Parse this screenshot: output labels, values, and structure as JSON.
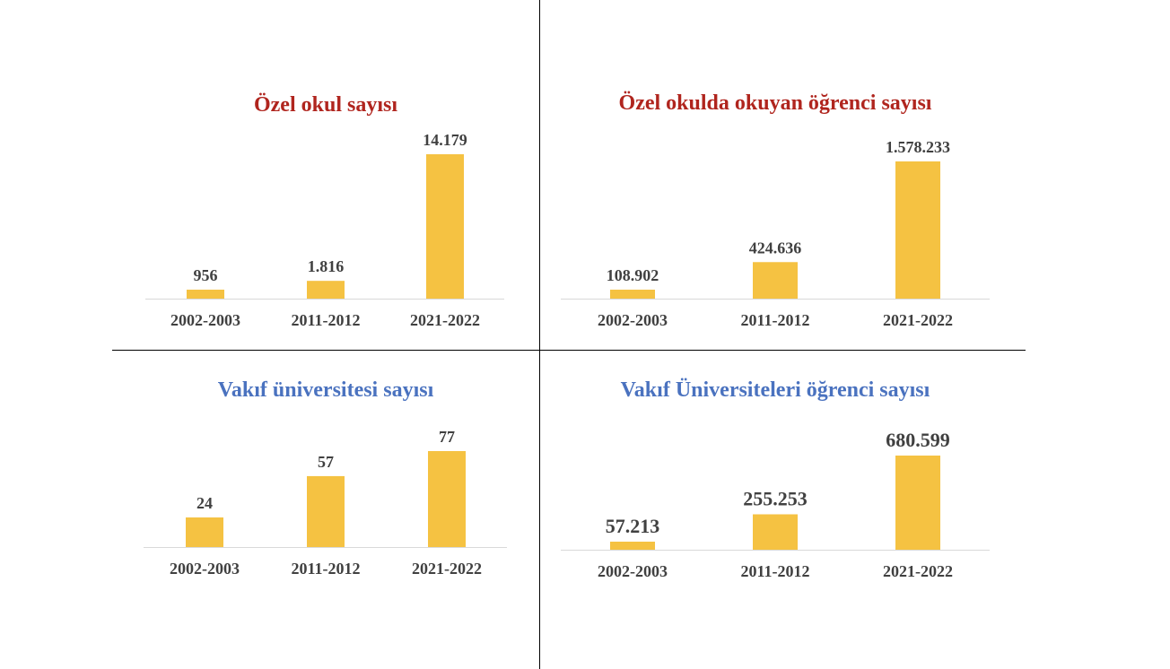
{
  "colors": {
    "bar": "#f5c242",
    "title_red": "#b0251e",
    "title_blue": "#4a72bf",
    "axis": "#d9d9d9",
    "text": "#404040"
  },
  "chart_data": [
    {
      "type": "bar",
      "title": "Özel okul sayısı",
      "title_color": "red",
      "categories": [
        "2002-2003",
        "2011-2012",
        "2021-2022"
      ],
      "values": [
        956,
        1816,
        14179
      ],
      "value_labels": [
        "956",
        "1.816",
        "14.179"
      ],
      "legend": "none",
      "grid": false
    },
    {
      "type": "bar",
      "title": "Özel okulda okuyan öğrenci sayısı",
      "title_color": "red",
      "categories": [
        "2002-2003",
        "2011-2012",
        "2021-2022"
      ],
      "values": [
        108902,
        424636,
        1578233
      ],
      "value_labels": [
        "108.902",
        "424.636",
        "1.578.233"
      ],
      "legend": "none",
      "grid": false
    },
    {
      "type": "bar",
      "title": "Vakıf üniversitesi sayısı",
      "title_color": "blue",
      "categories": [
        "2002-2003",
        "2011-2012",
        "2021-2022"
      ],
      "values": [
        24,
        57,
        77
      ],
      "value_labels": [
        "24",
        "57",
        "77"
      ],
      "legend": "none",
      "grid": false
    },
    {
      "type": "bar",
      "title": "Vakıf Üniversiteleri öğrenci sayısı",
      "title_color": "blue",
      "categories": [
        "2002-2003",
        "2011-2012",
        "2021-2022"
      ],
      "values": [
        57213,
        255253,
        680599
      ],
      "value_labels": [
        "57.213",
        "255.253",
        "680.599"
      ],
      "legend": "none",
      "grid": false
    }
  ]
}
